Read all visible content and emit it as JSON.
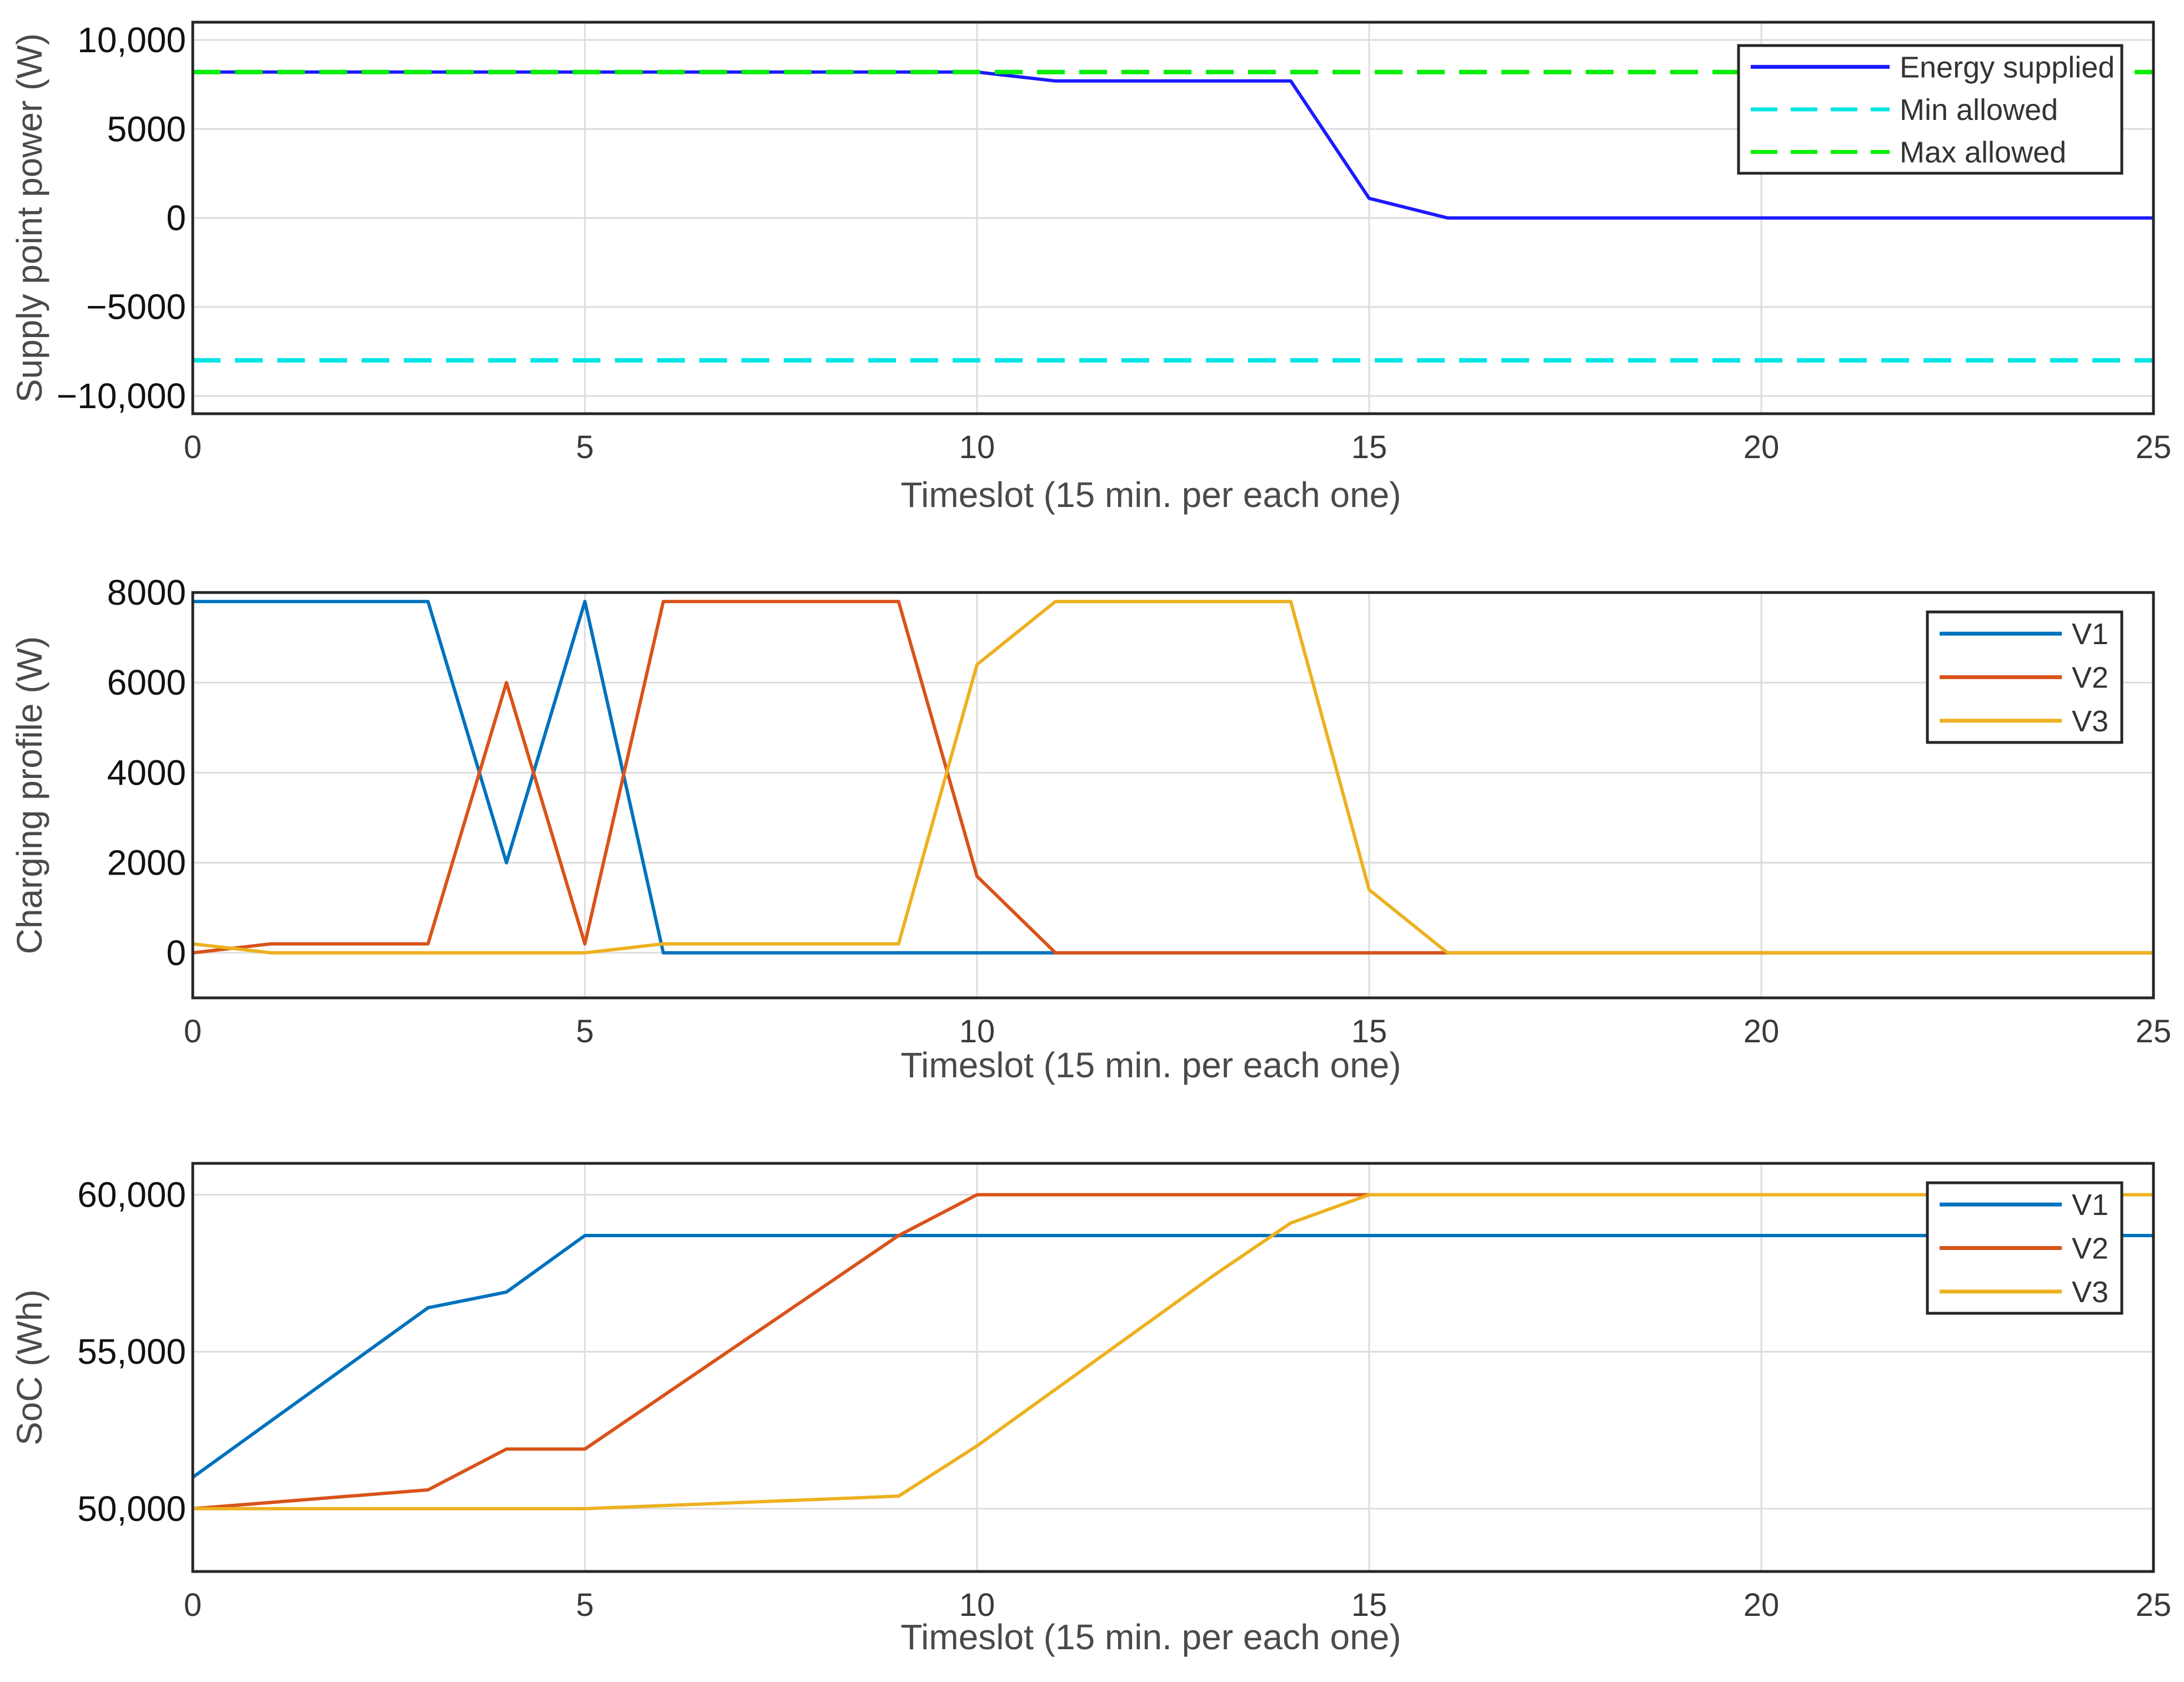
{
  "chart_data": [
    {
      "type": "line",
      "title": "",
      "xlabel": "Timeslot (15 min. per each one)",
      "ylabel": "Supply point power (W)",
      "xlim": [
        0,
        25
      ],
      "ylim": [
        -11000,
        11000
      ],
      "x_ticks": [
        "0",
        "5",
        "10",
        "15",
        "20",
        "25"
      ],
      "x_tick_values": [
        0,
        5,
        10,
        15,
        20,
        25
      ],
      "y_ticks": [
        "10,000",
        "5000",
        "0",
        "−5000",
        "−10,000"
      ],
      "y_tick_values": [
        10000,
        5000,
        0,
        -5000,
        -10000
      ],
      "grid": true,
      "legend_position": "top-right",
      "series": [
        {
          "name": "Energy supplied",
          "color": "#1a1aff",
          "dash": "solid",
          "x": [
            0,
            1,
            2,
            3,
            4,
            5,
            6,
            7,
            8,
            9,
            10,
            11,
            12,
            13,
            14,
            15,
            16,
            17,
            18,
            19,
            20,
            21,
            22,
            23,
            24,
            25
          ],
          "values": [
            8200,
            8200,
            8200,
            8200,
            8200,
            8200,
            8200,
            8200,
            8200,
            8200,
            8200,
            7700,
            7700,
            7700,
            7700,
            1100,
            0,
            0,
            0,
            0,
            0,
            0,
            0,
            0,
            0,
            0
          ]
        },
        {
          "name": "Min allowed",
          "color": "#00e5e5",
          "dash": "dashed",
          "x": [
            0,
            25
          ],
          "values": [
            -8000,
            -8000
          ]
        },
        {
          "name": "Max allowed",
          "color": "#00ee00",
          "dash": "dashed",
          "x": [
            0,
            25
          ],
          "values": [
            8200,
            8200
          ]
        }
      ]
    },
    {
      "type": "line",
      "title": "",
      "xlabel": "Timeslot (15 min. per each one)",
      "ylabel": "Charging profile (W)",
      "xlim": [
        0,
        25
      ],
      "ylim": [
        -1000,
        8000
      ],
      "x_ticks": [
        "0",
        "5",
        "10",
        "15",
        "20",
        "25"
      ],
      "x_tick_values": [
        0,
        5,
        10,
        15,
        20,
        25
      ],
      "y_ticks": [
        "8000",
        "6000",
        "4000",
        "2000",
        "0"
      ],
      "y_tick_values": [
        8000,
        6000,
        4000,
        2000,
        0
      ],
      "grid": true,
      "legend_position": "top-right",
      "series": [
        {
          "name": "V1",
          "color": "#0072bd",
          "dash": "solid",
          "x": [
            0,
            1,
            2,
            3,
            4,
            5,
            6,
            7,
            8,
            9,
            10,
            11,
            12,
            13,
            14,
            15,
            16,
            17,
            18,
            19,
            20,
            21,
            22,
            23,
            24,
            25
          ],
          "values": [
            7800,
            7800,
            7800,
            7800,
            2000,
            7800,
            0,
            0,
            0,
            0,
            0,
            0,
            0,
            0,
            0,
            0,
            0,
            0,
            0,
            0,
            0,
            0,
            0,
            0,
            0,
            0
          ]
        },
        {
          "name": "V2",
          "color": "#d95319",
          "dash": "solid",
          "x": [
            0,
            1,
            2,
            3,
            4,
            5,
            6,
            7,
            8,
            9,
            10,
            11,
            12,
            13,
            14,
            15,
            16,
            17,
            18,
            19,
            20,
            21,
            22,
            23,
            24,
            25
          ],
          "values": [
            0,
            200,
            200,
            200,
            6000,
            200,
            7800,
            7800,
            7800,
            7800,
            1700,
            0,
            0,
            0,
            0,
            0,
            0,
            0,
            0,
            0,
            0,
            0,
            0,
            0,
            0,
            0
          ]
        },
        {
          "name": "V3",
          "color": "#edb120",
          "dash": "solid",
          "x": [
            0,
            1,
            2,
            3,
            4,
            5,
            6,
            7,
            8,
            9,
            10,
            11,
            12,
            13,
            14,
            15,
            16,
            17,
            18,
            19,
            20,
            21,
            22,
            23,
            24,
            25
          ],
          "values": [
            200,
            0,
            0,
            0,
            0,
            0,
            200,
            200,
            200,
            200,
            6400,
            7800,
            7800,
            7800,
            7800,
            1400,
            0,
            0,
            0,
            0,
            0,
            0,
            0,
            0,
            0,
            0
          ]
        }
      ]
    },
    {
      "type": "line",
      "title": "",
      "xlabel": "Timeslot (15 min. per each one)",
      "ylabel": "SoC (Wh)",
      "xlim": [
        0,
        25
      ],
      "ylim": [
        48000,
        61000
      ],
      "x_ticks": [
        "0",
        "5",
        "10",
        "15",
        "20",
        "25"
      ],
      "x_tick_values": [
        0,
        5,
        10,
        15,
        20,
        25
      ],
      "y_ticks": [
        "60,000",
        "55,000",
        "50,000"
      ],
      "y_tick_values": [
        60000,
        55000,
        50000
      ],
      "grid": true,
      "legend_position": "top-right",
      "series": [
        {
          "name": "V1",
          "color": "#0072bd",
          "dash": "solid",
          "x": [
            0,
            1,
            2,
            3,
            4,
            5,
            6,
            7,
            8,
            9,
            10,
            11,
            12,
            13,
            14,
            15,
            16,
            17,
            18,
            19,
            20,
            21,
            22,
            23,
            24,
            25
          ],
          "values": [
            51000,
            52800,
            54600,
            56400,
            56900,
            58700,
            58700,
            58700,
            58700,
            58700,
            58700,
            58700,
            58700,
            58700,
            58700,
            58700,
            58700,
            58700,
            58700,
            58700,
            58700,
            58700,
            58700,
            58700,
            58700,
            58700
          ]
        },
        {
          "name": "V2",
          "color": "#d95319",
          "dash": "solid",
          "x": [
            0,
            1,
            2,
            3,
            4,
            5,
            6,
            7,
            8,
            9,
            10,
            11,
            12,
            13,
            14,
            15,
            16,
            17,
            18,
            19,
            20,
            21,
            22,
            23,
            24,
            25
          ],
          "values": [
            50000,
            50200,
            50400,
            50600,
            51900,
            51900,
            53600,
            55300,
            57000,
            58700,
            60000,
            60000,
            60000,
            60000,
            60000,
            60000,
            60000,
            60000,
            60000,
            60000,
            60000,
            60000,
            60000,
            60000,
            60000,
            60000
          ]
        },
        {
          "name": "V3",
          "color": "#edb120",
          "dash": "solid",
          "x": [
            0,
            1,
            2,
            3,
            4,
            5,
            6,
            7,
            8,
            9,
            10,
            11,
            12,
            13,
            14,
            15,
            16,
            17,
            18,
            19,
            20,
            21,
            22,
            23,
            24,
            25
          ],
          "values": [
            50000,
            50000,
            50000,
            50000,
            50000,
            50000,
            50100,
            50200,
            50300,
            50400,
            52000,
            53800,
            55600,
            57400,
            59100,
            60000,
            60000,
            60000,
            60000,
            60000,
            60000,
            60000,
            60000,
            60000,
            60000,
            60000
          ]
        }
      ]
    }
  ]
}
